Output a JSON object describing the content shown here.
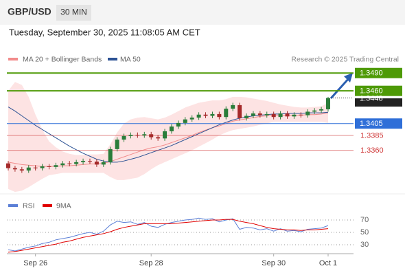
{
  "header": {
    "symbol": "GBP/USD",
    "timeframe": "30 MIN",
    "datetime": "Tuesday, September 30, 2025 11:08:05 AM CET"
  },
  "chart_data": [
    {
      "type": "candlestick",
      "source": "Research © 2025 Trading Central",
      "categories": [
        null,
        null,
        null,
        null,
        "Sep 26",
        null,
        null,
        null,
        null,
        null,
        null,
        null,
        null,
        null,
        null,
        null,
        null,
        null,
        null,
        null,
        null,
        "Sep 28",
        null,
        null,
        null,
        null,
        null,
        null,
        null,
        null,
        null,
        null,
        null,
        null,
        null,
        null,
        null,
        null,
        null,
        "Sep 30",
        null,
        null,
        null,
        null,
        null,
        null,
        null,
        "Oct 1"
      ],
      "open": [
        1.3338,
        1.333,
        1.3328,
        1.3326,
        1.3331,
        1.333,
        1.3333,
        1.3332,
        1.3335,
        1.3338,
        1.3337,
        1.334,
        1.3342,
        1.3341,
        1.3336,
        1.334,
        1.3362,
        1.3378,
        1.3384,
        1.3386,
        1.3385,
        1.3387,
        1.3382,
        1.338,
        1.3392,
        1.34,
        1.3406,
        1.3412,
        1.3415,
        1.342,
        1.3418,
        1.3421,
        1.3416,
        1.343,
        1.3436,
        1.3414,
        1.3418,
        1.3422,
        1.3419,
        1.3421,
        1.3416,
        1.3422,
        1.3417,
        1.342,
        1.3419,
        1.3425,
        1.3427,
        1.3429
      ],
      "high": [
        1.3342,
        1.3334,
        1.3332,
        1.3335,
        1.3335,
        1.3337,
        1.3337,
        1.3339,
        1.3342,
        1.3342,
        1.3344,
        1.3346,
        1.3346,
        1.3345,
        1.3344,
        1.3366,
        1.3382,
        1.3388,
        1.339,
        1.339,
        1.3391,
        1.3391,
        1.3386,
        1.3396,
        1.3404,
        1.341,
        1.3416,
        1.3419,
        1.3424,
        1.3424,
        1.3425,
        1.3425,
        1.3434,
        1.344,
        1.344,
        1.3422,
        1.3426,
        1.3426,
        1.3425,
        1.3425,
        1.3426,
        1.3426,
        1.3424,
        1.3424,
        1.3429,
        1.3431,
        1.3433,
        1.345
      ],
      "low": [
        1.3326,
        1.3324,
        1.3322,
        1.3322,
        1.3326,
        1.3326,
        1.3328,
        1.3328,
        1.3331,
        1.3333,
        1.3333,
        1.3336,
        1.3337,
        1.3332,
        1.3332,
        1.3336,
        1.3358,
        1.3374,
        1.338,
        1.3381,
        1.3381,
        1.3378,
        1.3376,
        1.3376,
        1.3388,
        1.3396,
        1.3402,
        1.3408,
        1.3411,
        1.3414,
        1.3414,
        1.3412,
        1.3412,
        1.3426,
        1.341,
        1.341,
        1.3414,
        1.3415,
        1.3415,
        1.3412,
        1.3412,
        1.3413,
        1.3413,
        1.3415,
        1.3415,
        1.3421,
        1.3423,
        1.3425
      ],
      "close": [
        1.333,
        1.3328,
        1.3326,
        1.3331,
        1.333,
        1.3333,
        1.3332,
        1.3335,
        1.3338,
        1.3337,
        1.334,
        1.3342,
        1.3341,
        1.3336,
        1.334,
        1.3362,
        1.3378,
        1.3384,
        1.3386,
        1.3385,
        1.3387,
        1.3382,
        1.338,
        1.3392,
        1.34,
        1.3406,
        1.3412,
        1.3415,
        1.342,
        1.3418,
        1.3421,
        1.3416,
        1.343,
        1.3436,
        1.3414,
        1.3418,
        1.3422,
        1.3419,
        1.3421,
        1.3416,
        1.3422,
        1.3417,
        1.342,
        1.3419,
        1.3425,
        1.3427,
        1.3429,
        1.3448
      ],
      "up_color": "#2a7d3a",
      "down_color": "#a52a2a",
      "series": [
        {
          "name": "MA 20 + Bollinger Bands",
          "color": "#f28b8b",
          "band_color": "#fde3e3",
          "values": [
            1.334,
            1.3338,
            1.3336,
            1.3335,
            1.3334,
            1.3333,
            1.3333,
            1.3333,
            1.3334,
            1.3334,
            1.3335,
            1.3336,
            1.3337,
            1.3337,
            1.3338,
            1.3341,
            1.3345,
            1.3349,
            1.3353,
            1.3357,
            1.3361,
            1.3364,
            1.3366,
            1.3369,
            1.3373,
            1.3377,
            1.3381,
            1.3385,
            1.339,
            1.3394,
            1.3398,
            1.3401,
            1.3405,
            1.3409,
            1.3411,
            1.3413,
            1.3415,
            1.3417,
            1.3418,
            1.3418,
            1.3419,
            1.3419,
            1.3419,
            1.3419,
            1.342,
            1.342,
            1.3421,
            1.3423
          ],
          "upper": [
            1.346,
            1.3475,
            1.347,
            1.345,
            1.342,
            1.3395,
            1.3375,
            1.3365,
            1.3358,
            1.3354,
            1.3352,
            1.3352,
            1.3353,
            1.3353,
            1.3354,
            1.337,
            1.339,
            1.3405,
            1.3412,
            1.3415,
            1.3416,
            1.3414,
            1.3412,
            1.3415,
            1.342,
            1.3426,
            1.3432,
            1.3436,
            1.344,
            1.3442,
            1.3444,
            1.3444,
            1.3446,
            1.345,
            1.345,
            1.3449,
            1.3447,
            1.3445,
            1.3443,
            1.344,
            1.3437,
            1.3435,
            1.3433,
            1.3432,
            1.3432,
            1.3433,
            1.3434,
            1.344
          ],
          "lower": [
            1.3295,
            1.329,
            1.3292,
            1.3298,
            1.3305,
            1.3312,
            1.3318,
            1.332,
            1.3322,
            1.3322,
            1.3322,
            1.3322,
            1.3322,
            1.3322,
            1.3322,
            1.3315,
            1.331,
            1.331,
            1.3312,
            1.3314,
            1.332,
            1.3328,
            1.3335,
            1.334,
            1.3345,
            1.335,
            1.3355,
            1.336,
            1.3366,
            1.3372,
            1.3378,
            1.3385,
            1.339,
            1.3394,
            1.3396,
            1.3398,
            1.34,
            1.3403,
            1.3405,
            1.3408,
            1.3408,
            1.3408,
            1.3408,
            1.3408,
            1.3408,
            1.3408,
            1.3408,
            1.3406
          ]
        },
        {
          "name": "MA 50",
          "color": "#2c5294",
          "values": [
            1.3433,
            1.3426,
            1.3418,
            1.341,
            1.3402,
            1.3395,
            1.3388,
            1.3381,
            1.3374,
            1.3367,
            1.3361,
            1.3355,
            1.335,
            1.3345,
            1.3342,
            1.334,
            1.334,
            1.3342,
            1.3345,
            1.3348,
            1.3352,
            1.3356,
            1.336,
            1.3364,
            1.3368,
            1.3373,
            1.3378,
            1.3383,
            1.3388,
            1.3393,
            1.3398,
            1.3403,
            1.3407,
            1.3411,
            1.3414,
            1.3416,
            1.3418,
            1.3419,
            1.342,
            1.3421,
            1.3421,
            1.3422,
            1.3422,
            1.3422,
            1.3423,
            1.3423,
            1.3423,
            1.3424
          ]
        }
      ],
      "levels": [
        {
          "value": 1.349,
          "label": "1.3490",
          "color": "#4e9a06",
          "style": "box"
        },
        {
          "value": 1.346,
          "label": "1.3460",
          "color": "#4e9a06",
          "style": "box"
        },
        {
          "value": 1.3405,
          "color": "#2f6fd8",
          "style": "box"
        },
        {
          "value": 1.3385,
          "color": "#d03a3a",
          "style": "text"
        },
        {
          "value": 1.336,
          "label": "1.3360",
          "color": "#d03a3a",
          "style": "text"
        }
      ],
      "last_color": "#222222",
      "ylim": [
        1.3289,
        1.3503
      ]
    },
    {
      "type": "line",
      "series": [
        {
          "name": "RSI",
          "color": "#5b7fd6",
          "values": [
            22,
            20,
            23,
            26,
            28,
            32,
            34,
            38,
            40,
            42,
            45,
            48,
            50,
            47,
            52,
            62,
            68,
            66,
            67,
            63,
            66,
            60,
            58,
            63,
            66,
            68,
            70,
            71,
            73,
            71,
            72,
            67,
            70,
            72,
            55,
            58,
            57,
            54,
            56,
            52,
            56,
            52,
            53,
            51,
            55,
            56,
            57,
            61
          ]
        },
        {
          "name": "9MA",
          "color": "#e00000",
          "values": [
            18,
            19,
            21,
            23,
            25,
            27,
            29,
            31,
            34,
            36,
            39,
            42,
            44,
            46,
            48,
            51,
            55,
            58,
            60,
            62,
            64,
            64,
            64,
            64,
            64,
            65,
            66,
            67,
            68,
            69,
            70,
            70,
            71,
            71,
            68,
            66,
            64,
            61,
            58,
            56,
            55,
            54,
            54,
            53,
            54,
            54,
            55,
            56
          ]
        }
      ],
      "yticks": [
        70,
        50,
        30
      ],
      "ylim": [
        16.7,
        81.1
      ],
      "grid": true
    }
  ]
}
